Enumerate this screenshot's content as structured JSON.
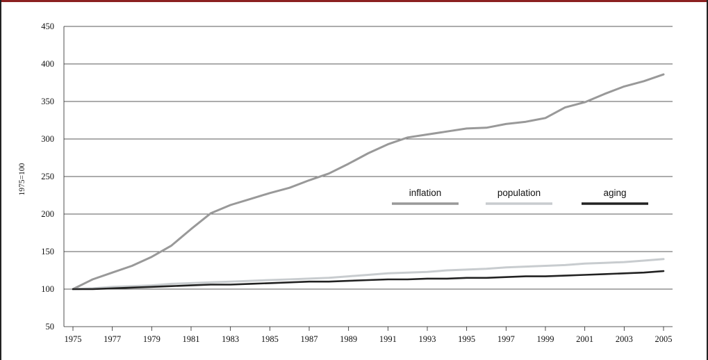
{
  "chart_data": {
    "type": "line",
    "title": "",
    "xlabel": "",
    "ylabel": "1975=100",
    "ylim": [
      50,
      450
    ],
    "yticks": [
      "50",
      "100",
      "150",
      "200",
      "250",
      "300",
      "350",
      "400",
      "450"
    ],
    "xticks": [
      "1975",
      "1977",
      "1979",
      "1981",
      "1983",
      "1985",
      "1987",
      "1989",
      "1991",
      "1993",
      "1995",
      "1997",
      "1999",
      "2001",
      "2003",
      "2005"
    ],
    "x": [
      1975,
      1976,
      1977,
      1978,
      1979,
      1980,
      1981,
      1982,
      1983,
      1984,
      1985,
      1986,
      1987,
      1988,
      1989,
      1990,
      1991,
      1992,
      1993,
      1994,
      1995,
      1996,
      1997,
      1998,
      1999,
      2000,
      2001,
      2002,
      2003,
      2004,
      2005
    ],
    "grid": "horizontal",
    "legend_position": "middle-right",
    "series": [
      {
        "name": "inflation",
        "color": "#999999",
        "values": [
          100,
          113,
          122,
          131,
          143,
          158,
          180,
          201,
          212,
          220,
          228,
          235,
          245,
          254,
          267,
          281,
          293,
          302,
          306,
          310,
          314,
          315,
          320,
          323,
          328,
          342,
          349,
          360,
          370,
          377,
          386
        ]
      },
      {
        "name": "population",
        "color": "#c8cccf",
        "values": [
          100,
          101,
          103,
          104,
          105,
          107,
          108,
          109,
          110,
          111,
          112,
          113,
          114,
          115,
          117,
          119,
          121,
          122,
          123,
          125,
          126,
          127,
          129,
          130,
          131,
          132,
          134,
          135,
          136,
          138,
          140
        ]
      },
      {
        "name": "aging",
        "color": "#222222",
        "values": [
          100,
          100,
          101,
          102,
          103,
          104,
          105,
          106,
          106,
          107,
          108,
          109,
          110,
          110,
          111,
          112,
          113,
          113,
          114,
          114,
          115,
          115,
          116,
          117,
          117,
          118,
          119,
          120,
          121,
          122,
          124
        ]
      }
    ]
  }
}
